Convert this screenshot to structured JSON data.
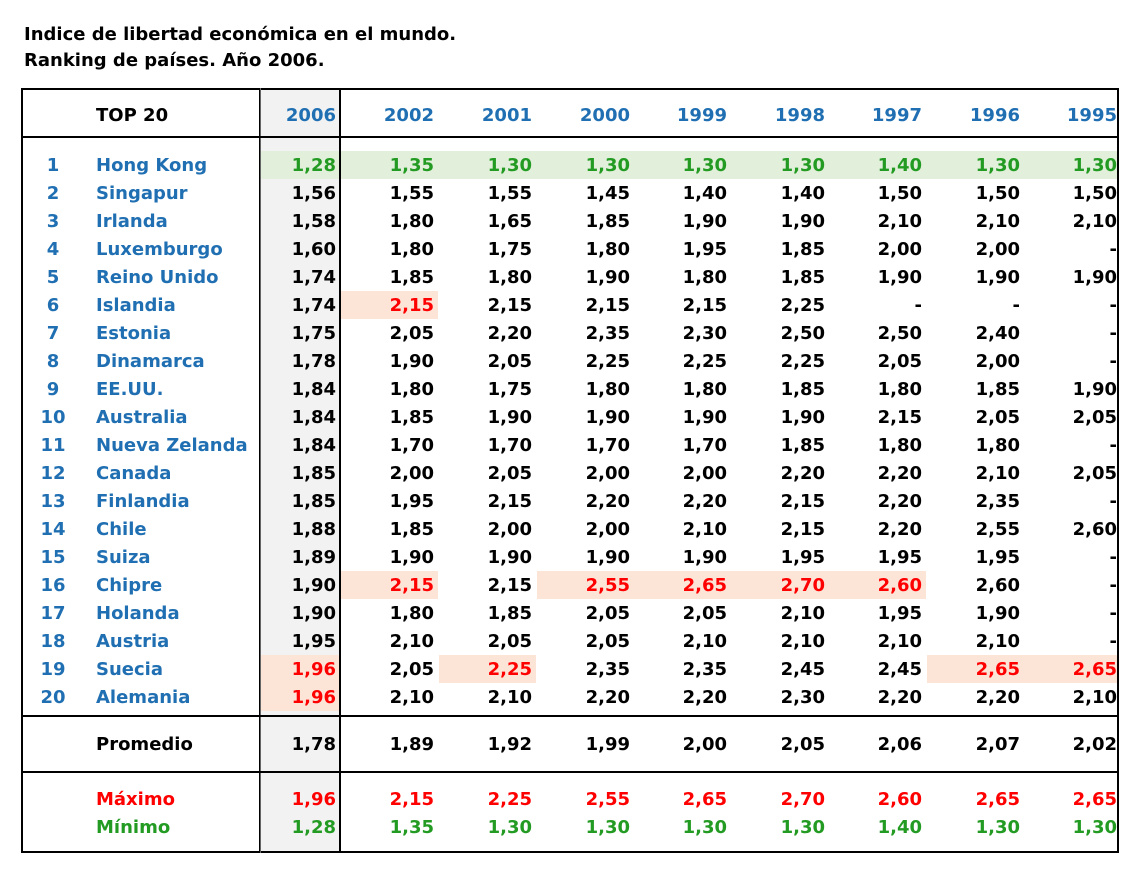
{
  "title": {
    "line1": "Indice de libertad económica en el mundo.",
    "line2": "Ranking de países.  Año 2006."
  },
  "header": {
    "label": "TOP 20",
    "years": [
      "2006",
      "2002",
      "2001",
      "2000",
      "1999",
      "1998",
      "1997",
      "1996",
      "1995"
    ]
  },
  "rows": [
    {
      "rank": "1",
      "country": "Hong Kong",
      "values": [
        "1,28",
        "1,35",
        "1,30",
        "1,30",
        "1,30",
        "1,30",
        "1,40",
        "1,30",
        "1,30"
      ]
    },
    {
      "rank": "2",
      "country": "Singapur",
      "values": [
        "1,56",
        "1,55",
        "1,55",
        "1,45",
        "1,40",
        "1,40",
        "1,50",
        "1,50",
        "1,50"
      ]
    },
    {
      "rank": "3",
      "country": "Irlanda",
      "values": [
        "1,58",
        "1,80",
        "1,65",
        "1,85",
        "1,90",
        "1,90",
        "2,10",
        "2,10",
        "2,10"
      ]
    },
    {
      "rank": "4",
      "country": "Luxemburgo",
      "values": [
        "1,60",
        "1,80",
        "1,75",
        "1,80",
        "1,95",
        "1,85",
        "2,00",
        "2,00",
        "-"
      ]
    },
    {
      "rank": "5",
      "country": "Reino Unido",
      "values": [
        "1,74",
        "1,85",
        "1,80",
        "1,90",
        "1,80",
        "1,85",
        "1,90",
        "1,90",
        "1,90"
      ]
    },
    {
      "rank": "6",
      "country": "Islandia",
      "values": [
        "1,74",
        "2,15",
        "2,15",
        "2,15",
        "2,15",
        "2,25",
        "-",
        "-",
        "-"
      ]
    },
    {
      "rank": "7",
      "country": "Estonia",
      "values": [
        "1,75",
        "2,05",
        "2,20",
        "2,35",
        "2,30",
        "2,50",
        "2,50",
        "2,40",
        "-"
      ]
    },
    {
      "rank": "8",
      "country": "Dinamarca",
      "values": [
        "1,78",
        "1,90",
        "2,05",
        "2,25",
        "2,25",
        "2,25",
        "2,05",
        "2,00",
        "-"
      ]
    },
    {
      "rank": "9",
      "country": "EE.UU.",
      "values": [
        "1,84",
        "1,80",
        "1,75",
        "1,80",
        "1,80",
        "1,85",
        "1,80",
        "1,85",
        "1,90"
      ]
    },
    {
      "rank": "10",
      "country": "Australia",
      "values": [
        "1,84",
        "1,85",
        "1,90",
        "1,90",
        "1,90",
        "1,90",
        "2,15",
        "2,05",
        "2,05"
      ]
    },
    {
      "rank": "11",
      "country": "Nueva Zelanda",
      "values": [
        "1,84",
        "1,70",
        "1,70",
        "1,70",
        "1,70",
        "1,85",
        "1,80",
        "1,80",
        "-"
      ]
    },
    {
      "rank": "12",
      "country": "Canada",
      "values": [
        "1,85",
        "2,00",
        "2,05",
        "2,00",
        "2,00",
        "2,20",
        "2,20",
        "2,10",
        "2,05"
      ]
    },
    {
      "rank": "13",
      "country": "Finlandia",
      "values": [
        "1,85",
        "1,95",
        "2,15",
        "2,20",
        "2,20",
        "2,15",
        "2,20",
        "2,35",
        "-"
      ]
    },
    {
      "rank": "14",
      "country": "Chile",
      "values": [
        "1,88",
        "1,85",
        "2,00",
        "2,00",
        "2,10",
        "2,15",
        "2,20",
        "2,55",
        "2,60"
      ]
    },
    {
      "rank": "15",
      "country": "Suiza",
      "values": [
        "1,89",
        "1,90",
        "1,90",
        "1,90",
        "1,90",
        "1,95",
        "1,95",
        "1,95",
        "-"
      ]
    },
    {
      "rank": "16",
      "country": "Chipre",
      "values": [
        "1,90",
        "2,15",
        "2,15",
        "2,55",
        "2,65",
        "2,70",
        "2,60",
        "2,60",
        "-"
      ]
    },
    {
      "rank": "17",
      "country": "Holanda",
      "values": [
        "1,90",
        "1,80",
        "1,85",
        "2,05",
        "2,05",
        "2,10",
        "1,95",
        "1,90",
        "-"
      ]
    },
    {
      "rank": "18",
      "country": "Austria",
      "values": [
        "1,95",
        "2,10",
        "2,05",
        "2,05",
        "2,10",
        "2,10",
        "2,10",
        "2,10",
        "-"
      ]
    },
    {
      "rank": "19",
      "country": "Suecia",
      "values": [
        "1,96",
        "2,05",
        "2,25",
        "2,35",
        "2,35",
        "2,45",
        "2,45",
        "2,65",
        "2,65"
      ]
    },
    {
      "rank": "20",
      "country": "Alemania",
      "values": [
        "1,96",
        "2,10",
        "2,10",
        "2,20",
        "2,20",
        "2,30",
        "2,20",
        "2,20",
        "2,10"
      ]
    }
  ],
  "summary": {
    "promedio": {
      "label": "Promedio",
      "values": [
        "1,78",
        "1,89",
        "1,92",
        "1,99",
        "2,00",
        "2,05",
        "2,06",
        "2,07",
        "2,02"
      ]
    },
    "maximo": {
      "label": "Máximo",
      "values": [
        "1,96",
        "2,15",
        "2,25",
        "2,55",
        "2,65",
        "2,70",
        "2,60",
        "2,65",
        "2,65"
      ]
    },
    "minimo": {
      "label": "Mínimo",
      "values": [
        "1,28",
        "1,35",
        "1,30",
        "1,30",
        "1,30",
        "1,30",
        "1,40",
        "1,30",
        "1,30"
      ]
    }
  },
  "colors": {
    "country_text": "#1f6fb2",
    "max_text": "#ff0000",
    "min_text": "#239b23",
    "max_highlight": "#fce4d6",
    "min_highlight": "#e2efda",
    "column_2006_bg": "#f2f2f2"
  }
}
